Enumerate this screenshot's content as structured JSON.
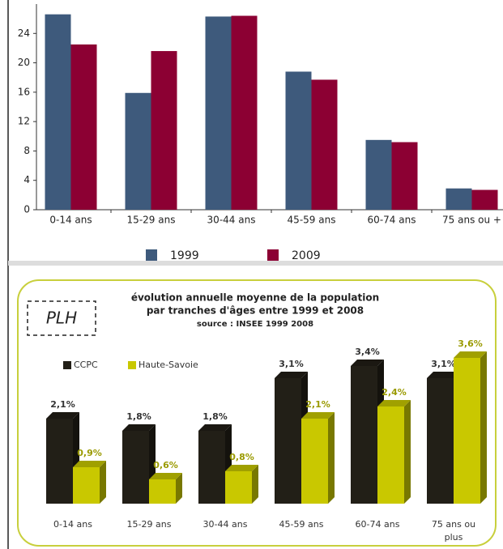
{
  "chart_data": [
    {
      "type": "bar",
      "categories": [
        "0-14 ans",
        "15-29 ans",
        "30-44 ans",
        "45-59 ans",
        "60-74 ans",
        "75 ans ou +"
      ],
      "series": [
        {
          "name": "1999",
          "color": "#3e5a7c",
          "values": [
            26.6,
            15.9,
            26.3,
            18.8,
            9.5,
            2.9
          ]
        },
        {
          "name": "2009",
          "color": "#8c0033",
          "values": [
            22.5,
            21.6,
            26.4,
            17.7,
            9.2,
            2.7
          ]
        }
      ],
      "ylim": [
        0,
        28
      ],
      "yticks": [
        0,
        4,
        8,
        12,
        16,
        20,
        24
      ],
      "legend": "bottom"
    },
    {
      "type": "bar",
      "three_d": true,
      "annotation": "PLH",
      "title": [
        "évolution annuelle moyenne de la population",
        "par tranches d'âges entre 1999 et 2008"
      ],
      "subtitle": "source : INSEE 1999 2008",
      "categories": [
        "0-14 ans",
        "15-29 ans",
        "30-44 ans",
        "45-59 ans",
        "60-74 ans",
        "75 ans ou plus"
      ],
      "series": [
        {
          "name": "CCPC",
          "color": "#221f17",
          "values": [
            2.1,
            1.8,
            1.8,
            3.1,
            3.4,
            3.1
          ],
          "value_labels": [
            "2,1%",
            "1,8%",
            "1,8%",
            "3,1%",
            "3,4%",
            "3,1%"
          ]
        },
        {
          "name": "Haute-Savoie",
          "color": "#c9c800",
          "values": [
            0.9,
            0.6,
            0.8,
            2.1,
            2.4,
            3.6
          ],
          "value_labels": [
            "0,9%",
            "0,6%",
            "0,8%",
            "2,1%",
            "2,4%",
            "3,6%"
          ]
        }
      ],
      "legend": "top left"
    }
  ]
}
